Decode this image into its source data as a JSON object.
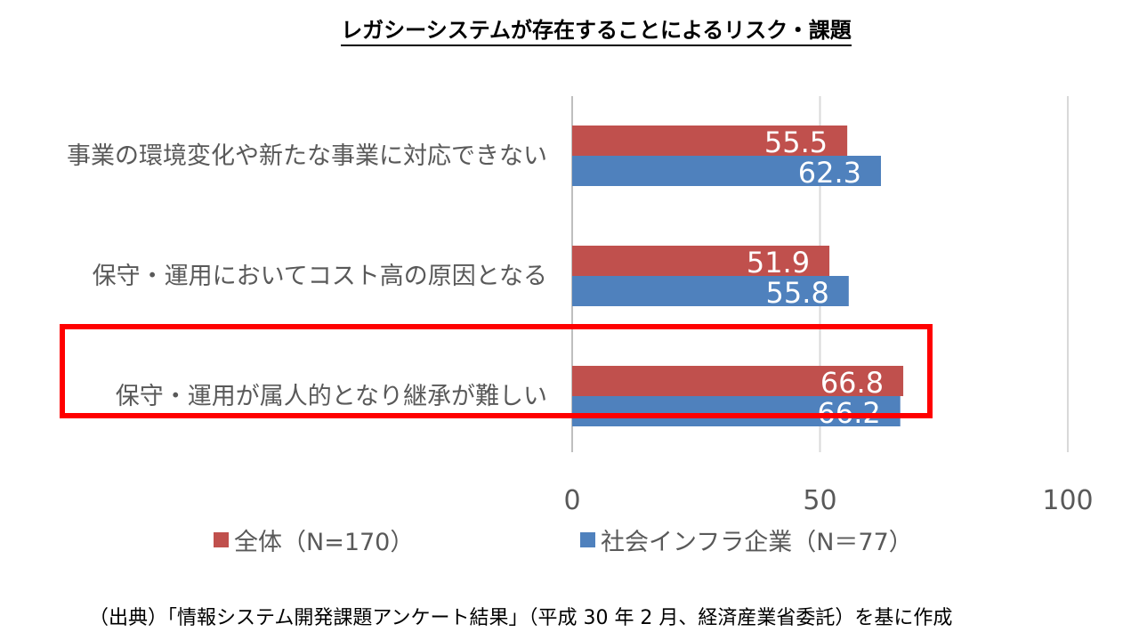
{
  "chart_data": {
    "type": "bar",
    "orientation": "horizontal",
    "title": "レガシーシステムが存在することによるリスク・課題",
    "categories": [
      "事業の環境変化や新たな事業に対応できない",
      "保守・運用においてコスト高の原因となる",
      "保守・運用が属人的となり継承が難しい"
    ],
    "series": [
      {
        "name": "全体（N=170）",
        "color": "#C0504D",
        "values": [
          55.5,
          51.9,
          66.8
        ]
      },
      {
        "name": "社会インフラ企業（N＝77）",
        "color": "#4F81BD",
        "values": [
          62.3,
          55.8,
          66.2
        ]
      }
    ],
    "value_labels": [
      [
        "55.5",
        "51.9",
        "66.8"
      ],
      [
        "62.3",
        "55.8",
        "66.2"
      ]
    ],
    "xlim": [
      0,
      100
    ],
    "xticks": [
      "0",
      "50",
      "100"
    ],
    "grid": true,
    "legend_position": "bottom",
    "highlight_color": "#FF0000",
    "highlighted_category": 2
  },
  "source_note": "（出典）「情報システム開発課題アンケート結果」（平成 30 年 2 月、経済産業省委託）を基に作成"
}
